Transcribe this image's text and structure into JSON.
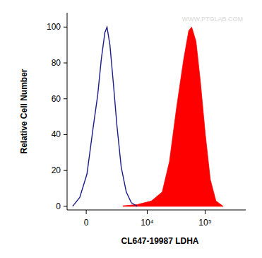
{
  "chart_data": {
    "type": "area",
    "x_label": "CL647-19987 LDHA",
    "y_label": "Relative Cell Number",
    "annotations": [
      "WWW.PTGLAB.COM"
    ],
    "series": [
      {
        "type": "line",
        "color": "#1c1c8a",
        "x": [
          -1019,
          -465,
          51,
          518,
          846,
          1139,
          1455,
          1656,
          1949,
          2340,
          2770,
          3370,
          4210,
          5220,
          6660
        ],
        "values": [
          0,
          5,
          18,
          45,
          62,
          82,
          97,
          100,
          90,
          68,
          45,
          22,
          8,
          2,
          0
        ]
      },
      {
        "type": "area",
        "color": "#ff0000",
        "x": [
          3640,
          6660,
          11860,
          18200,
          24300,
          32200,
          42700,
          52200,
          58700,
          69600,
          82600,
          100800,
          122700,
          153500,
          205000
        ],
        "values": [
          0.3,
          1,
          3,
          8,
          25,
          55,
          82,
          98,
          100,
          92,
          70,
          40,
          15,
          3,
          0
        ]
      }
    ],
    "xlim": [
      -1500,
      500000
    ],
    "xticks": [
      0,
      {
        "value": 10000,
        "label": "10⁴"
      },
      {
        "value": 100000,
        "label": "10⁵"
      }
    ],
    "ylim": [
      -2,
      108
    ],
    "yticks": [
      0,
      20,
      40,
      60,
      80,
      100
    ],
    "grid": false
  }
}
